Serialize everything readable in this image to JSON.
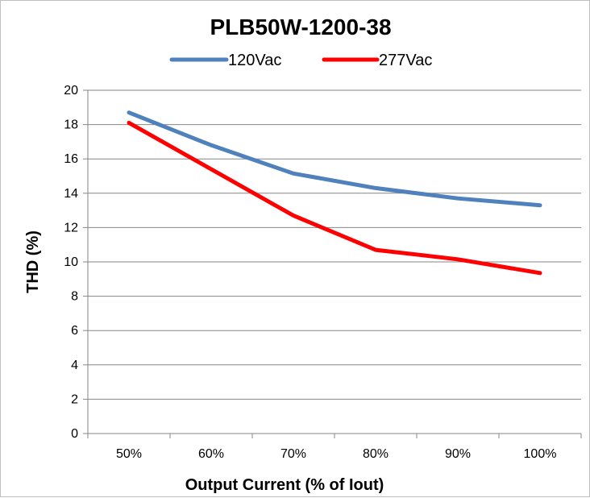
{
  "chart_data": {
    "type": "line",
    "title": "PLB50W-1200-38",
    "xlabel": "Output Current (% of Iout)",
    "ylabel": "THD (%)",
    "categories": [
      "50%",
      "60%",
      "70%",
      "80%",
      "90%",
      "100%"
    ],
    "ylim": [
      0,
      20
    ],
    "yticks": [
      "0",
      "2",
      "4",
      "6",
      "8",
      "10",
      "12",
      "14",
      "16",
      "18",
      "20"
    ],
    "grid": true,
    "legend_position": "top",
    "series": [
      {
        "name": "120Vac",
        "color": "#4f81bd",
        "values": [
          18.7,
          16.8,
          15.15,
          14.3,
          13.7,
          13.3
        ]
      },
      {
        "name": "277Vac",
        "color": "#ff0000",
        "values": [
          18.1,
          15.4,
          12.7,
          10.7,
          10.15,
          9.35
        ]
      }
    ]
  }
}
